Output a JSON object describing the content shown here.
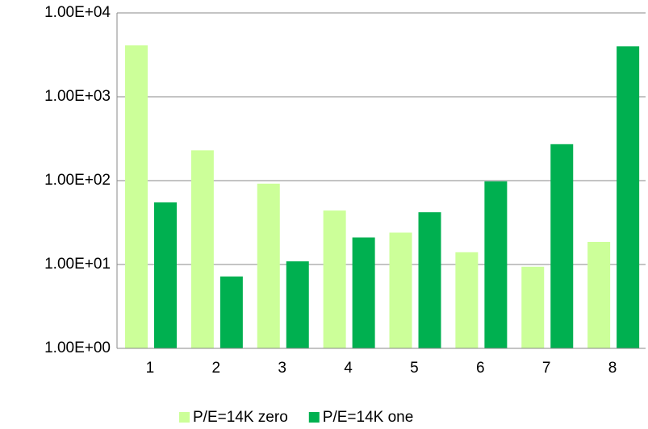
{
  "chart_data": {
    "type": "bar",
    "log_scale": true,
    "grid": true,
    "legend": "bottom",
    "categories": [
      "1",
      "2",
      "3",
      "4",
      "5",
      "6",
      "7",
      "8"
    ],
    "series": [
      {
        "name": "P/E=14K zero",
        "color": "#ccff99",
        "values": [
          4100,
          230,
          92,
          44,
          24,
          14,
          9.4,
          18.6
        ]
      },
      {
        "name": "P/E=14K one",
        "color": "#00b050",
        "values": [
          55,
          7.2,
          10.9,
          21,
          42,
          98,
          272,
          4000
        ]
      }
    ],
    "ylim": [
      1,
      10000
    ],
    "yticks": [
      {
        "value": 1,
        "label": "1.00E+00"
      },
      {
        "value": 10,
        "label": "1.00E+01"
      },
      {
        "value": 100,
        "label": "1.00E+02"
      },
      {
        "value": 1000,
        "label": "1.00E+03"
      },
      {
        "value": 10000,
        "label": "1.00E+04"
      }
    ]
  }
}
